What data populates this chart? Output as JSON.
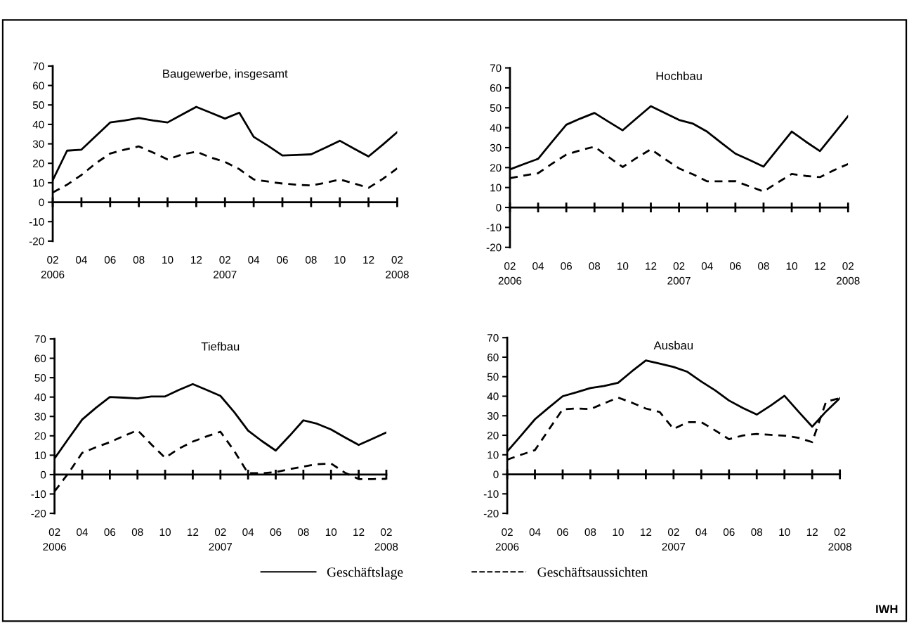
{
  "chart_data": [
    {
      "type": "line",
      "title": "Baugewerbe, insgesamt",
      "x": [
        "2006-02",
        "2006-03",
        "2006-04",
        "2006-05",
        "2006-06",
        "2006-07",
        "2006-08",
        "2006-09",
        "2006-10",
        "2006-11",
        "2006-12",
        "2007-01",
        "2007-02",
        "2007-03",
        "2007-04",
        "2007-05",
        "2007-06",
        "2007-07",
        "2007-08",
        "2007-09",
        "2007-10",
        "2007-11",
        "2007-12",
        "2008-01",
        "2008-02"
      ],
      "series": [
        {
          "name": "Geschäftslage",
          "color": "#000000",
          "line_style": "solid",
          "values": [
            11.3,
            26.5,
            27,
            34,
            41,
            42,
            43.3,
            42,
            41,
            45,
            49,
            46,
            43,
            46,
            33.6,
            29,
            24,
            24.3,
            24.6,
            28,
            31.6,
            27.5,
            23.5,
            29.6,
            36
          ]
        },
        {
          "name": "Geschäftsaussichten",
          "color": "#000000",
          "line_style": "dashed",
          "values": [
            5,
            9,
            14,
            20,
            25,
            27,
            28.7,
            25.5,
            22,
            24.5,
            26,
            23,
            20.7,
            17,
            11.7,
            10.6,
            9.6,
            9,
            8.6,
            10,
            11.7,
            9.6,
            7.4,
            12,
            17.4
          ]
        }
      ],
      "xlim": [
        "2006-02",
        "2008-02"
      ],
      "xticks": [
        {
          "value": "2006-02",
          "label": "02\n2006"
        },
        {
          "value": "2006-04",
          "label": "04"
        },
        {
          "value": "2006-06",
          "label": "06"
        },
        {
          "value": "2006-08",
          "label": "08"
        },
        {
          "value": "2006-10",
          "label": "10"
        },
        {
          "value": "2006-12",
          "label": "12"
        },
        {
          "value": "2007-02",
          "label": "02\n2007"
        },
        {
          "value": "2007-04",
          "label": "04"
        },
        {
          "value": "2007-06",
          "label": "06"
        },
        {
          "value": "2007-08",
          "label": "08"
        },
        {
          "value": "2007-10",
          "label": "10"
        },
        {
          "value": "2007-12",
          "label": "12"
        },
        {
          "value": "2008-02",
          "label": "02\n2008"
        }
      ],
      "ylim": [
        -20,
        70
      ],
      "yticks": [
        -20,
        -10,
        0,
        10,
        20,
        30,
        40,
        50,
        60,
        70
      ],
      "legend": "bottom"
    },
    {
      "type": "line",
      "title": "Hochbau",
      "x": [
        "2006-02",
        "2006-03",
        "2006-04",
        "2006-05",
        "2006-06",
        "2006-07",
        "2006-08",
        "2006-09",
        "2006-10",
        "2006-11",
        "2006-12",
        "2007-01",
        "2007-02",
        "2007-03",
        "2007-04",
        "2007-05",
        "2007-06",
        "2007-07",
        "2007-08",
        "2007-09",
        "2007-10",
        "2007-11",
        "2007-12",
        "2008-01",
        "2008-02"
      ],
      "series": [
        {
          "name": "Geschäftslage",
          "color": "#000000",
          "line_style": "solid",
          "values": [
            19.1,
            21.8,
            24.4,
            33,
            41.5,
            44.6,
            47.4,
            43,
            38.7,
            44.8,
            50.8,
            47.4,
            43.9,
            42,
            38,
            32.4,
            27,
            23.8,
            20.5,
            29.3,
            38.1,
            33,
            28.3,
            37,
            45.8
          ]
        },
        {
          "name": "Geschäftsaussichten",
          "color": "#000000",
          "line_style": "dashed",
          "values": [
            14.7,
            16,
            17.2,
            22,
            26.5,
            28.7,
            30.5,
            25.3,
            20.3,
            24.9,
            29.2,
            24.3,
            19.6,
            16.6,
            13.1,
            13.1,
            13.2,
            10.6,
            8,
            12.5,
            16.8,
            15.8,
            15.2,
            18.7,
            21.8
          ]
        }
      ],
      "xlim": [
        "2006-02",
        "2008-02"
      ],
      "xticks": [
        {
          "value": "2006-02",
          "label": "02\n2006"
        },
        {
          "value": "2006-04",
          "label": "04"
        },
        {
          "value": "2006-06",
          "label": "06"
        },
        {
          "value": "2006-08",
          "label": "08"
        },
        {
          "value": "2006-10",
          "label": "10"
        },
        {
          "value": "2006-12",
          "label": "12"
        },
        {
          "value": "2007-02",
          "label": "02\n2007"
        },
        {
          "value": "2007-04",
          "label": "04"
        },
        {
          "value": "2007-06",
          "label": "06"
        },
        {
          "value": "2007-08",
          "label": "08"
        },
        {
          "value": "2007-10",
          "label": "10"
        },
        {
          "value": "2007-12",
          "label": "12"
        },
        {
          "value": "2008-02",
          "label": "02\n2008"
        }
      ],
      "ylim": [
        -20,
        70
      ],
      "yticks": [
        -20,
        -10,
        0,
        10,
        20,
        30,
        40,
        50,
        60,
        70
      ],
      "legend": "bottom"
    },
    {
      "type": "line",
      "title": "Tiefbau",
      "x": [
        "2006-02",
        "2006-03",
        "2006-04",
        "2006-05",
        "2006-06",
        "2006-07",
        "2006-08",
        "2006-09",
        "2006-10",
        "2006-11",
        "2006-12",
        "2007-01",
        "2007-02",
        "2007-03",
        "2007-04",
        "2007-05",
        "2007-06",
        "2007-07",
        "2007-08",
        "2007-09",
        "2007-10",
        "2007-11",
        "2007-12",
        "2008-01",
        "2008-02"
      ],
      "series": [
        {
          "name": "Geschäftslage",
          "color": "#000000",
          "line_style": "solid",
          "values": [
            8.3,
            18.5,
            28.4,
            34.5,
            40,
            39.7,
            39.3,
            40.3,
            40.3,
            43.7,
            46.7,
            43.7,
            40.6,
            32.2,
            22.7,
            17.3,
            12.4,
            20,
            28,
            26.2,
            23.3,
            19.2,
            15.3,
            18.5,
            21.7
          ]
        },
        {
          "name": "Geschäftsaussichten",
          "color": "#000000",
          "line_style": "dashed",
          "values": [
            -8.7,
            0.7,
            11.2,
            14.1,
            16.7,
            19.9,
            22.9,
            15.6,
            8.7,
            13.4,
            17,
            19.7,
            22.1,
            12.2,
            0.7,
            0.7,
            1.3,
            2.8,
            4.1,
            5.4,
            5.7,
            1,
            -2.3,
            -2.3,
            -2.2
          ]
        }
      ],
      "xlim": [
        "2006-02",
        "2008-02"
      ],
      "xticks": [
        {
          "value": "2006-02",
          "label": "02\n2006"
        },
        {
          "value": "2006-04",
          "label": "04"
        },
        {
          "value": "2006-06",
          "label": "06"
        },
        {
          "value": "2006-08",
          "label": "08"
        },
        {
          "value": "2006-10",
          "label": "10"
        },
        {
          "value": "2006-12",
          "label": "12"
        },
        {
          "value": "2007-02",
          "label": "02\n2007"
        },
        {
          "value": "2007-04",
          "label": "04"
        },
        {
          "value": "2007-06",
          "label": "06"
        },
        {
          "value": "2007-08",
          "label": "08"
        },
        {
          "value": "2007-10",
          "label": "10"
        },
        {
          "value": "2007-12",
          "label": "12"
        },
        {
          "value": "2008-02",
          "label": "02\n2008"
        }
      ],
      "ylim": [
        -20,
        70
      ],
      "yticks": [
        -20,
        -10,
        0,
        10,
        20,
        30,
        40,
        50,
        60,
        70
      ],
      "legend": "bottom"
    },
    {
      "type": "line",
      "title": "Ausbau",
      "x": [
        "2006-02",
        "2006-03",
        "2006-04",
        "2006-05",
        "2006-06",
        "2006-07",
        "2006-08",
        "2006-09",
        "2006-10",
        "2006-11",
        "2006-12",
        "2007-01",
        "2007-02",
        "2007-03",
        "2007-04",
        "2007-05",
        "2007-06",
        "2007-07",
        "2007-08",
        "2007-09",
        "2007-10",
        "2007-11",
        "2007-12",
        "2008-01",
        "2008-02"
      ],
      "series": [
        {
          "name": "Geschäftslage",
          "color": "#000000",
          "line_style": "solid",
          "values": [
            11.7,
            19.9,
            28.2,
            34.2,
            40,
            42,
            44.2,
            45.3,
            46.9,
            52.8,
            58.3,
            56.7,
            55,
            52.5,
            47.5,
            43,
            37.8,
            34,
            30.6,
            35.2,
            40.2,
            32.2,
            24.4,
            32.2,
            39
          ]
        },
        {
          "name": "Geschäftsaussichten",
          "color": "#000000",
          "line_style": "dashed",
          "values": [
            7.5,
            10,
            12.4,
            22.9,
            33.3,
            33.7,
            33.4,
            36.4,
            39.3,
            36.7,
            33.7,
            31.9,
            23.2,
            26.7,
            26.7,
            22.5,
            18,
            19.9,
            20.7,
            20.2,
            19.8,
            18.7,
            16.5,
            37.2,
            39
          ]
        }
      ],
      "xlim": [
        "2006-02",
        "2008-02"
      ],
      "xticks": [
        {
          "value": "2006-02",
          "label": "02\n2006"
        },
        {
          "value": "2006-04",
          "label": "04"
        },
        {
          "value": "2006-06",
          "label": "06"
        },
        {
          "value": "2006-08",
          "label": "08"
        },
        {
          "value": "2006-10",
          "label": "10"
        },
        {
          "value": "2006-12",
          "label": "12"
        },
        {
          "value": "2007-02",
          "label": "02\n2007"
        },
        {
          "value": "2007-04",
          "label": "04"
        },
        {
          "value": "2007-06",
          "label": "06"
        },
        {
          "value": "2007-08",
          "label": "08"
        },
        {
          "value": "2007-10",
          "label": "10"
        },
        {
          "value": "2007-12",
          "label": "12"
        },
        {
          "value": "2008-02",
          "label": "02\n2008"
        }
      ],
      "ylim": [
        -20,
        70
      ],
      "yticks": [
        -20,
        -10,
        0,
        10,
        20,
        30,
        40,
        50,
        60,
        70
      ],
      "legend": "bottom",
      "annotations": [
        "IWH"
      ]
    }
  ]
}
